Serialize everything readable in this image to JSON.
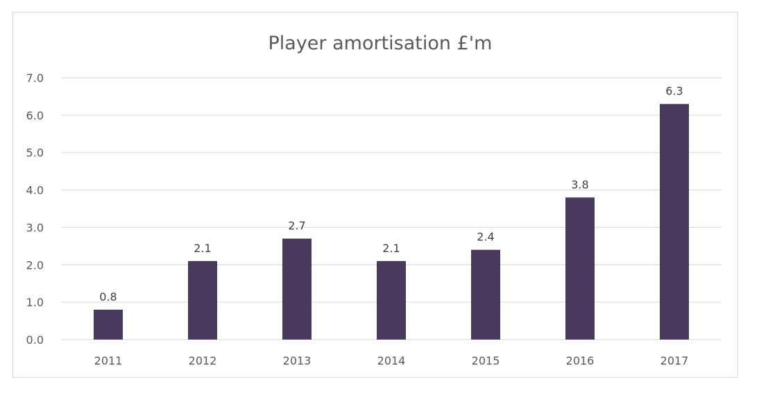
{
  "chart_data": {
    "type": "bar",
    "title": "Player amortisation £'m",
    "xlabel": "",
    "ylabel": "",
    "categories": [
      "2011",
      "2012",
      "2013",
      "2014",
      "2015",
      "2016",
      "2017"
    ],
    "values": [
      0.8,
      2.1,
      2.7,
      2.1,
      2.4,
      3.8,
      6.3
    ],
    "value_labels": [
      "0.8",
      "2.1",
      "2.7",
      "2.1",
      "2.4",
      "3.8",
      "6.3"
    ],
    "ylim": [
      0,
      7
    ],
    "yticks": [
      "0.0",
      "1.0",
      "2.0",
      "3.0",
      "4.0",
      "5.0",
      "6.0",
      "7.0"
    ],
    "grid": true,
    "legend": "none",
    "colors": {
      "bar": "#483a5c"
    }
  }
}
